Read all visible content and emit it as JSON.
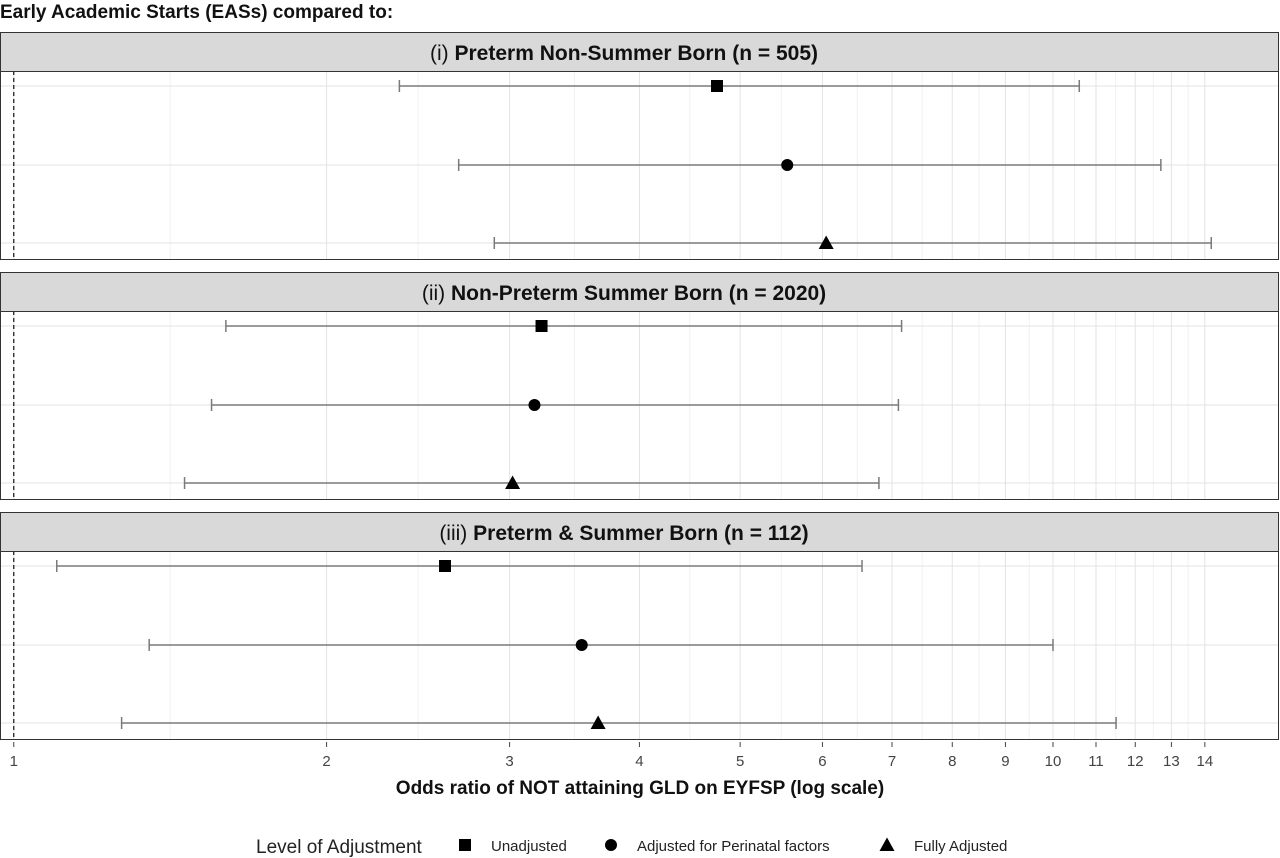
{
  "chart_data": {
    "type": "forest",
    "title": "Early Academic Starts (EASs) compared to:",
    "xlabel": "Odds ratio of NOT attaining GLD on EYFSP (log scale)",
    "x_scale": "log",
    "xlim": [
      0.97,
      16.5
    ],
    "x_ticks": [
      1,
      2,
      3,
      4,
      5,
      6,
      7,
      8,
      9,
      10,
      11,
      12,
      13,
      14
    ],
    "reference_line": 1,
    "grid": true,
    "legend": {
      "title": "Level of Adjustment",
      "position": "bottom",
      "items": [
        {
          "label": "Unadjusted",
          "shape": "square"
        },
        {
          "label": "Adjusted for Perinatal factors",
          "shape": "circle"
        },
        {
          "label": "Fully Adjusted",
          "shape": "triangle"
        }
      ]
    },
    "panels": [
      {
        "prefix": "(i)",
        "label": "Preterm Non-Summer Born (n = 505)",
        "estimates": [
          {
            "adjustment": "Unadjusted",
            "shape": "square",
            "or": 4.75,
            "lower": 2.35,
            "upper": 10.6
          },
          {
            "adjustment": "Adjusted for Perinatal factors",
            "shape": "circle",
            "or": 5.55,
            "lower": 2.68,
            "upper": 12.7
          },
          {
            "adjustment": "Fully Adjusted",
            "shape": "triangle",
            "or": 6.05,
            "lower": 2.9,
            "upper": 14.2
          }
        ]
      },
      {
        "prefix": "(ii)",
        "label": "Non-Preterm Summer Born (n = 2020)",
        "estimates": [
          {
            "adjustment": "Unadjusted",
            "shape": "square",
            "or": 3.22,
            "lower": 1.6,
            "upper": 7.15
          },
          {
            "adjustment": "Adjusted for Perinatal factors",
            "shape": "circle",
            "or": 3.17,
            "lower": 1.55,
            "upper": 7.1
          },
          {
            "adjustment": "Fully Adjusted",
            "shape": "triangle",
            "or": 3.02,
            "lower": 1.46,
            "upper": 6.8
          }
        ]
      },
      {
        "prefix": "(iii)",
        "label": "Preterm & Summer Born (n = 112)",
        "estimates": [
          {
            "adjustment": "Unadjusted",
            "shape": "square",
            "or": 2.6,
            "lower": 1.1,
            "upper": 6.55
          },
          {
            "adjustment": "Adjusted for Perinatal factors",
            "shape": "circle",
            "or": 3.52,
            "lower": 1.35,
            "upper": 10.0
          },
          {
            "adjustment": "Fully Adjusted",
            "shape": "triangle",
            "or": 3.65,
            "lower": 1.27,
            "upper": 11.5
          }
        ]
      }
    ]
  }
}
